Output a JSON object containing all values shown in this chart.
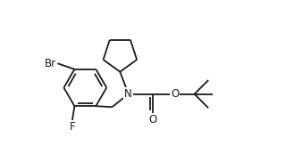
{
  "bg_color": "#ffffff",
  "line_color": "#1a1a1a",
  "font_size": 8.5,
  "line_width": 1.3,
  "figsize": [
    3.29,
    1.73
  ],
  "dpi": 100,
  "xlim": [
    -1.6,
    4.5
  ],
  "ylim": [
    -1.5,
    1.8
  ]
}
